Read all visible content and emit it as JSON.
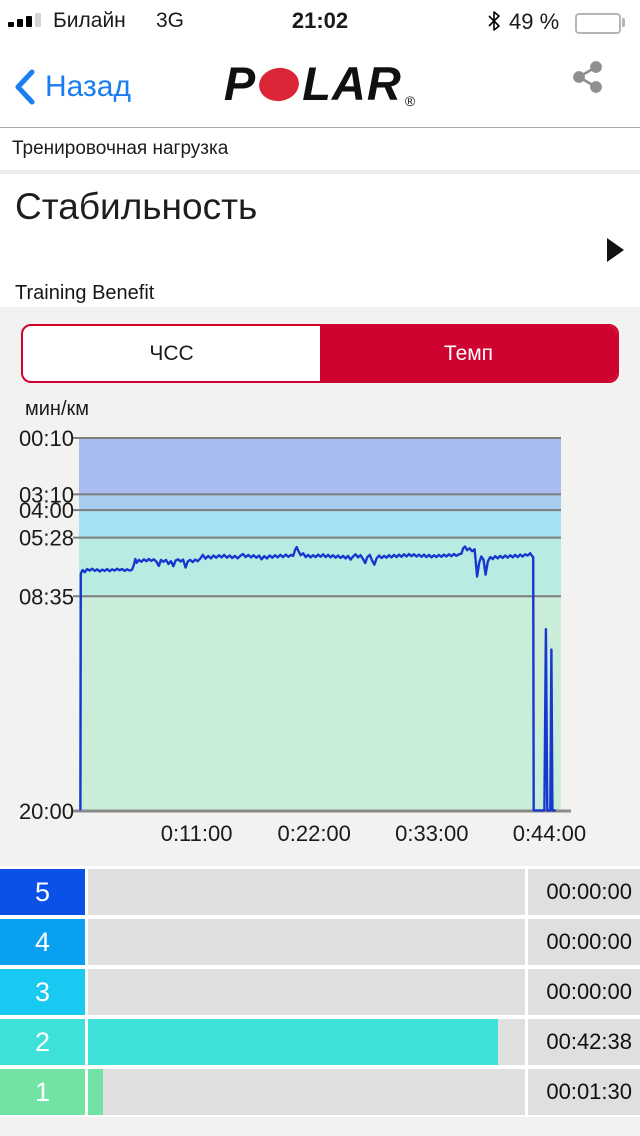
{
  "status_bar": {
    "carrier": "Билайн",
    "network": "3G",
    "time": "21:02",
    "battery_label": "49 %",
    "battery_pct": 49
  },
  "nav": {
    "back_label": "Назад",
    "logo_p": "P",
    "logo_lar": "LAR",
    "logo_reg": "®"
  },
  "section": {
    "title": "Тренировочная нагрузка"
  },
  "header": {
    "title": "Стабильность",
    "subtitle": "Training Benefit"
  },
  "toggle": {
    "left_label": "ЧСС",
    "right_label": "Темп",
    "accent": "#cf0330"
  },
  "chart_data": {
    "type": "line",
    "unit_label": "мин/км",
    "line_color": "#1738cf",
    "grid_color": "#7d7d7d",
    "axis": {
      "t_min": 0,
      "t_max": 2705,
      "pace_min": 10,
      "pace_max": 1200
    },
    "y_ticks": [
      {
        "label": "00:10",
        "pace": 10
      },
      {
        "label": "03:10",
        "pace": 190
      },
      {
        "label": "04:00",
        "pace": 240
      },
      {
        "label": "05:28",
        "pace": 328
      },
      {
        "label": "08:35",
        "pace": 515
      },
      {
        "label": "20:00",
        "pace": 1200
      }
    ],
    "x_ticks": [
      {
        "label": "0:11:00",
        "t": 660
      },
      {
        "label": "0:22:00",
        "t": 1320
      },
      {
        "label": "0:33:00",
        "t": 1980
      },
      {
        "label": "0:44:00",
        "t": 2640
      }
    ],
    "zones": [
      {
        "from": 10,
        "to": 190,
        "color": "#a9bcf0"
      },
      {
        "from": 190,
        "to": 240,
        "color": "#a9cdf0"
      },
      {
        "from": 240,
        "to": 328,
        "color": "#a5e1f2"
      },
      {
        "from": 328,
        "to": 515,
        "color": "#b8ece2"
      },
      {
        "from": 515,
        "to": 1200,
        "color": "#c9edd8"
      }
    ],
    "series": [
      [
        8,
        1198
      ],
      [
        10,
        442
      ],
      [
        20,
        431
      ],
      [
        32,
        438
      ],
      [
        46,
        428
      ],
      [
        60,
        433
      ],
      [
        74,
        427
      ],
      [
        88,
        434
      ],
      [
        102,
        429
      ],
      [
        116,
        436
      ],
      [
        130,
        430
      ],
      [
        144,
        434
      ],
      [
        158,
        428
      ],
      [
        172,
        435
      ],
      [
        186,
        429
      ],
      [
        200,
        433
      ],
      [
        214,
        427
      ],
      [
        228,
        432
      ],
      [
        242,
        428
      ],
      [
        256,
        434
      ],
      [
        270,
        429
      ],
      [
        284,
        433
      ],
      [
        298,
        430
      ],
      [
        308,
        414
      ],
      [
        316,
        396
      ],
      [
        324,
        408
      ],
      [
        336,
        399
      ],
      [
        350,
        405
      ],
      [
        364,
        397
      ],
      [
        378,
        403
      ],
      [
        392,
        396
      ],
      [
        406,
        402
      ],
      [
        420,
        397
      ],
      [
        434,
        404
      ],
      [
        448,
        418
      ],
      [
        460,
        399
      ],
      [
        474,
        405
      ],
      [
        488,
        399
      ],
      [
        502,
        412
      ],
      [
        516,
        403
      ],
      [
        530,
        419
      ],
      [
        542,
        401
      ],
      [
        556,
        397
      ],
      [
        570,
        404
      ],
      [
        584,
        398
      ],
      [
        598,
        423
      ],
      [
        610,
        404
      ],
      [
        624,
        399
      ],
      [
        638,
        406
      ],
      [
        652,
        398
      ],
      [
        666,
        403
      ],
      [
        680,
        395
      ],
      [
        695,
        383
      ],
      [
        710,
        395
      ],
      [
        725,
        386
      ],
      [
        740,
        394
      ],
      [
        755,
        385
      ],
      [
        770,
        392
      ],
      [
        785,
        384
      ],
      [
        800,
        391
      ],
      [
        815,
        383
      ],
      [
        830,
        392
      ],
      [
        845,
        385
      ],
      [
        860,
        393
      ],
      [
        875,
        386
      ],
      [
        890,
        394
      ],
      [
        905,
        386
      ],
      [
        920,
        380
      ],
      [
        935,
        390
      ],
      [
        950,
        383
      ],
      [
        965,
        391
      ],
      [
        980,
        384
      ],
      [
        995,
        392
      ],
      [
        1010,
        385
      ],
      [
        1025,
        397
      ],
      [
        1040,
        387
      ],
      [
        1055,
        394
      ],
      [
        1070,
        385
      ],
      [
        1085,
        392
      ],
      [
        1100,
        384
      ],
      [
        1115,
        391
      ],
      [
        1130,
        383
      ],
      [
        1145,
        390
      ],
      [
        1160,
        382
      ],
      [
        1175,
        389
      ],
      [
        1190,
        383
      ],
      [
        1202,
        386
      ],
      [
        1212,
        368
      ],
      [
        1222,
        358
      ],
      [
        1232,
        371
      ],
      [
        1244,
        384
      ],
      [
        1258,
        378
      ],
      [
        1272,
        390
      ],
      [
        1286,
        383
      ],
      [
        1300,
        391
      ],
      [
        1314,
        384
      ],
      [
        1328,
        390
      ],
      [
        1342,
        382
      ],
      [
        1356,
        389
      ],
      [
        1370,
        381
      ],
      [
        1384,
        390
      ],
      [
        1398,
        383
      ],
      [
        1412,
        391
      ],
      [
        1426,
        384
      ],
      [
        1440,
        392
      ],
      [
        1454,
        385
      ],
      [
        1468,
        393
      ],
      [
        1482,
        386
      ],
      [
        1496,
        394
      ],
      [
        1510,
        386
      ],
      [
        1524,
        398
      ],
      [
        1538,
        388
      ],
      [
        1552,
        381
      ],
      [
        1566,
        391
      ],
      [
        1580,
        384
      ],
      [
        1594,
        396
      ],
      [
        1606,
        409
      ],
      [
        1618,
        390
      ],
      [
        1632,
        383
      ],
      [
        1646,
        402
      ],
      [
        1658,
        414
      ],
      [
        1670,
        394
      ],
      [
        1684,
        385
      ],
      [
        1698,
        393
      ],
      [
        1712,
        386
      ],
      [
        1726,
        392
      ],
      [
        1740,
        384
      ],
      [
        1754,
        391
      ],
      [
        1768,
        383
      ],
      [
        1782,
        390
      ],
      [
        1796,
        382
      ],
      [
        1810,
        389
      ],
      [
        1824,
        381
      ],
      [
        1838,
        388
      ],
      [
        1852,
        380
      ],
      [
        1866,
        387
      ],
      [
        1880,
        381
      ],
      [
        1894,
        388
      ],
      [
        1908,
        382
      ],
      [
        1922,
        389
      ],
      [
        1936,
        382
      ],
      [
        1950,
        390
      ],
      [
        1964,
        383
      ],
      [
        1978,
        391
      ],
      [
        1992,
        384
      ],
      [
        2006,
        390
      ],
      [
        2020,
        383
      ],
      [
        2034,
        389
      ],
      [
        2048,
        382
      ],
      [
        2062,
        388
      ],
      [
        2076,
        381
      ],
      [
        2090,
        387
      ],
      [
        2104,
        380
      ],
      [
        2118,
        386
      ],
      [
        2132,
        381
      ],
      [
        2146,
        379
      ],
      [
        2156,
        362
      ],
      [
        2166,
        356
      ],
      [
        2178,
        368
      ],
      [
        2192,
        362
      ],
      [
        2206,
        371
      ],
      [
        2220,
        365
      ],
      [
        2234,
        452
      ],
      [
        2246,
        408
      ],
      [
        2258,
        388
      ],
      [
        2270,
        398
      ],
      [
        2282,
        446
      ],
      [
        2294,
        404
      ],
      [
        2308,
        390
      ],
      [
        2322,
        396
      ],
      [
        2336,
        387
      ],
      [
        2350,
        394
      ],
      [
        2364,
        386
      ],
      [
        2378,
        393
      ],
      [
        2392,
        385
      ],
      [
        2406,
        392
      ],
      [
        2420,
        384
      ],
      [
        2434,
        391
      ],
      [
        2448,
        383
      ],
      [
        2462,
        390
      ],
      [
        2476,
        382
      ],
      [
        2490,
        388
      ],
      [
        2504,
        381
      ],
      [
        2518,
        385
      ],
      [
        2532,
        378
      ],
      [
        2542,
        386
      ],
      [
        2549,
        390
      ],
      [
        2552,
        1198
      ],
      [
        2612,
        1198
      ],
      [
        2620,
        620
      ],
      [
        2628,
        1198
      ],
      [
        2645,
        1198
      ],
      [
        2651,
        685
      ],
      [
        2657,
        1198
      ],
      [
        2676,
        1198
      ]
    ]
  },
  "zones_table": {
    "rows": [
      {
        "zone": "5",
        "time": "00:00:00",
        "color": "#0b51e8",
        "bar_pct": 0
      },
      {
        "zone": "4",
        "time": "00:00:00",
        "color": "#09a0f0",
        "bar_pct": 0
      },
      {
        "zone": "3",
        "time": "00:00:00",
        "color": "#18c9f2",
        "bar_pct": 0
      },
      {
        "zone": "2",
        "time": "00:42:38",
        "color": "#3ee1d9",
        "bar_pct": 93.8
      },
      {
        "zone": "1",
        "time": "00:01:30",
        "color": "#72e3a4",
        "bar_pct": 3.4
      }
    ]
  }
}
